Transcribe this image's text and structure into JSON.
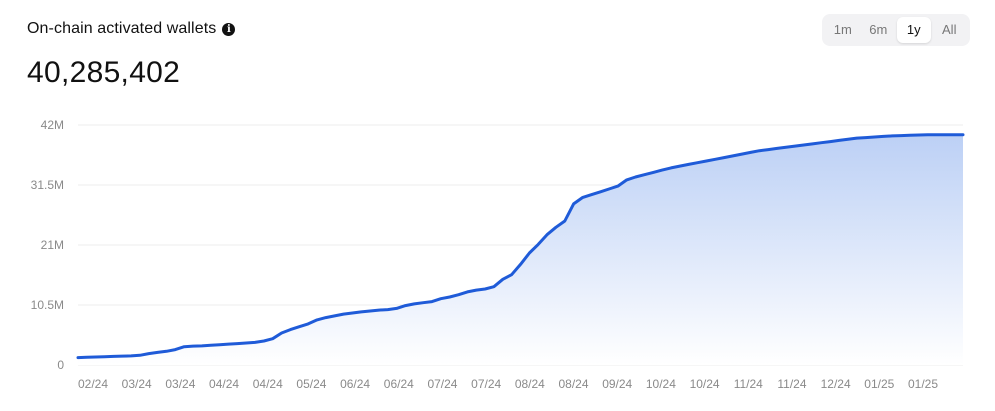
{
  "header": {
    "title": "On-chain activated wallets",
    "info_icon": "info-icon",
    "value": "40,285,402"
  },
  "range_selector": {
    "options": [
      "1m",
      "6m",
      "1y",
      "All"
    ],
    "selected": "1y"
  },
  "colors": {
    "line": "#1f5bd8",
    "fill_top": "#bcd0f5",
    "fill_bottom": "#ffffff",
    "grid": "#eeeeee"
  },
  "chart_data": {
    "type": "area",
    "title": "On-chain activated wallets",
    "xlabel": "",
    "ylabel": "",
    "ylim": [
      0,
      42000000
    ],
    "y_tick_labels": [
      "0",
      "10.5M",
      "21M",
      "31.5M",
      "42M"
    ],
    "y_ticks": [
      0,
      10500000,
      21000000,
      31500000,
      42000000
    ],
    "x_tick_labels": [
      "02/24",
      "03/24",
      "03/24",
      "04/24",
      "04/24",
      "05/24",
      "06/24",
      "06/24",
      "07/24",
      "07/24",
      "08/24",
      "08/24",
      "09/24",
      "10/24",
      "10/24",
      "11/24",
      "11/24",
      "12/24",
      "01/25",
      "01/25"
    ],
    "grid": true,
    "series": [
      {
        "name": "",
        "x": [
          0,
          1,
          2,
          3,
          4,
          5,
          6,
          7,
          8,
          9,
          10,
          11,
          12,
          13,
          14,
          15,
          16,
          17,
          18,
          19,
          20,
          21,
          22,
          23,
          24,
          25,
          26,
          27,
          28,
          29,
          30,
          31,
          32,
          33,
          34,
          35,
          36,
          37,
          38,
          39,
          40,
          41,
          42,
          43,
          44,
          45,
          46,
          47,
          48,
          49,
          50,
          51,
          52,
          53,
          54,
          55,
          56,
          57,
          58,
          59,
          60,
          61,
          62,
          63,
          64,
          65,
          66,
          67,
          68,
          69,
          70,
          71,
          72,
          73,
          74,
          75,
          76,
          77,
          78,
          79,
          80,
          81,
          82,
          83,
          84,
          85,
          86,
          87,
          88,
          89,
          90,
          91,
          92,
          93,
          94,
          95,
          96,
          97,
          98,
          99,
          100
        ],
        "values": [
          1300000,
          1350000,
          1400000,
          1450000,
          1500000,
          1550000,
          1600000,
          1700000,
          2000000,
          2200000,
          2400000,
          2700000,
          3200000,
          3300000,
          3350000,
          3450000,
          3550000,
          3650000,
          3750000,
          3850000,
          3950000,
          4200000,
          4600000,
          5600000,
          6200000,
          6700000,
          7200000,
          7900000,
          8300000,
          8600000,
          8900000,
          9100000,
          9300000,
          9450000,
          9600000,
          9700000,
          9900000,
          10400000,
          10700000,
          10900000,
          11100000,
          11600000,
          11900000,
          12300000,
          12800000,
          13100000,
          13300000,
          13700000,
          15000000,
          15800000,
          17600000,
          19600000,
          21100000,
          22800000,
          24100000,
          25200000,
          28200000,
          29300000,
          29800000,
          30300000,
          30800000,
          31300000,
          32400000,
          32900000,
          33300000,
          33700000,
          34100000,
          34500000,
          34800000,
          35100000,
          35400000,
          35700000,
          36000000,
          36300000,
          36600000,
          36900000,
          37200000,
          37500000,
          37700000,
          37900000,
          38100000,
          38300000,
          38500000,
          38700000,
          38900000,
          39100000,
          39300000,
          39500000,
          39700000,
          39800000,
          39900000,
          40000000,
          40100000,
          40150000,
          40200000,
          40250000,
          40285402,
          40285402,
          40285402,
          40285402,
          40285402
        ]
      }
    ]
  }
}
